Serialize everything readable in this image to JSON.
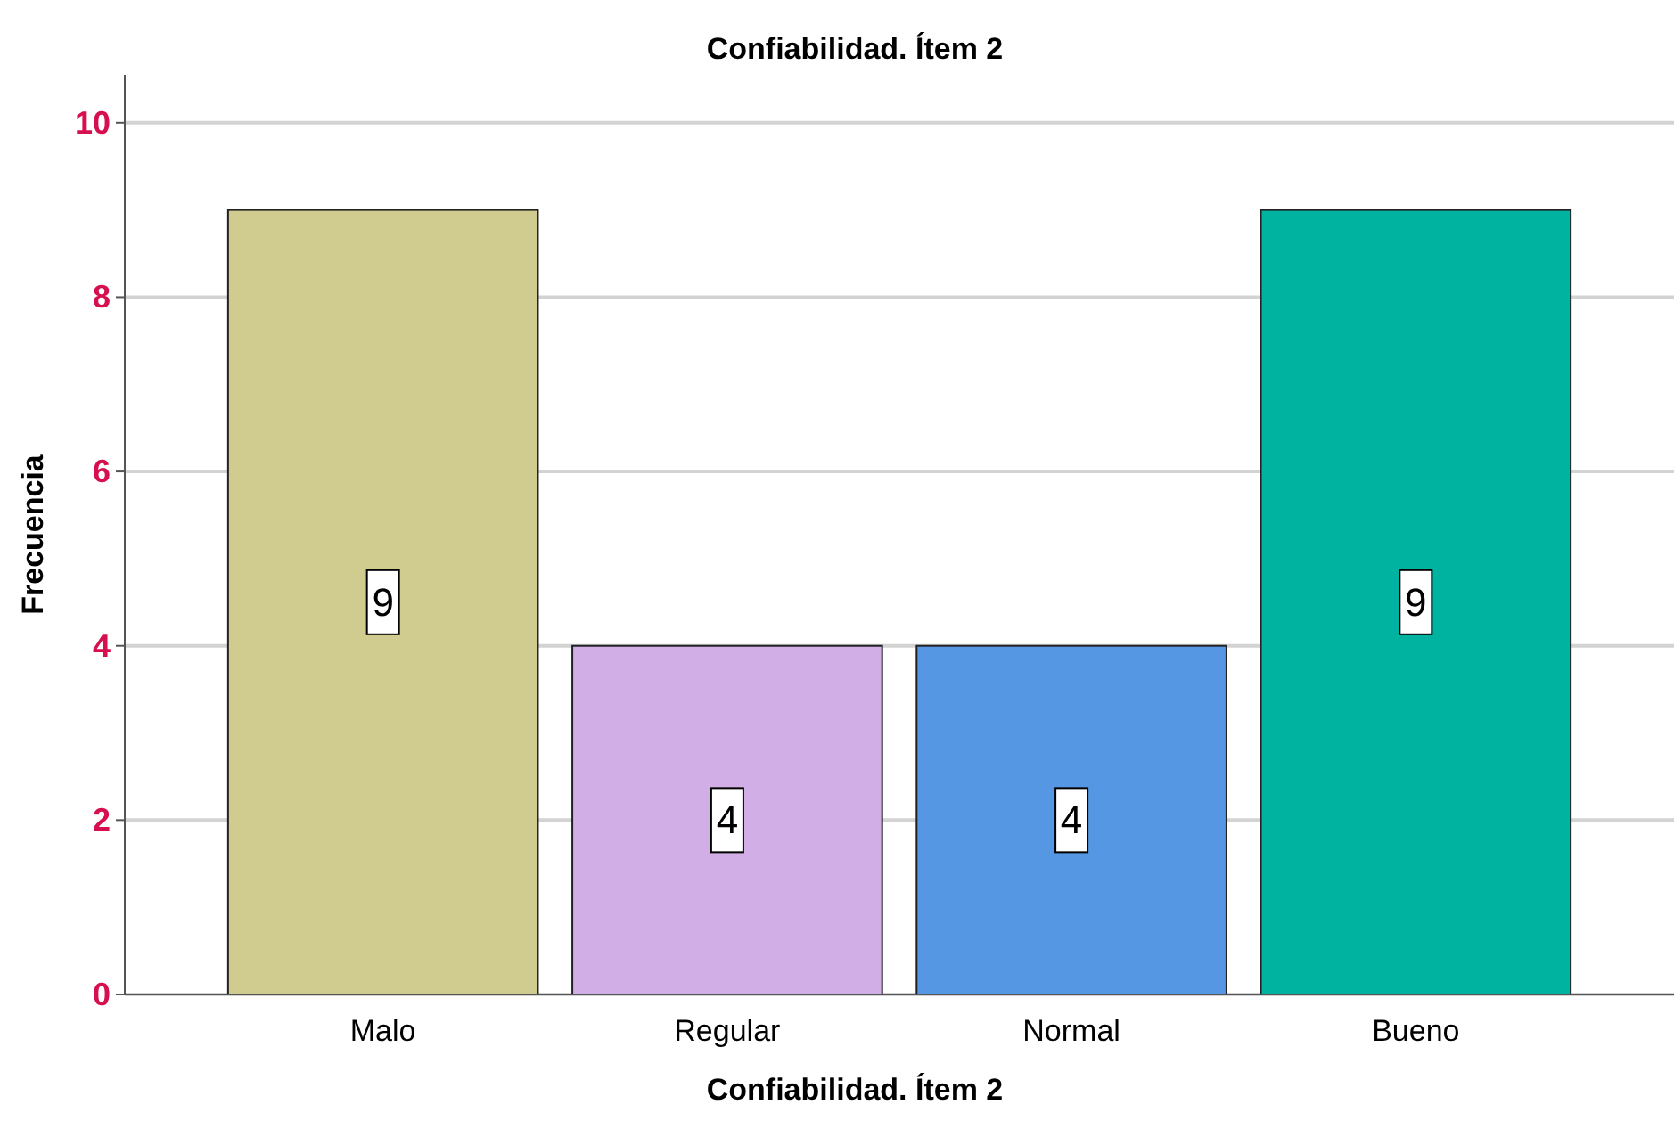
{
  "chart_data": {
    "type": "bar",
    "title": "Confiabilidad. Ítem 2",
    "xlabel": "Confiabilidad. Ítem 2",
    "ylabel": "Frecuencia",
    "categories": [
      "Malo",
      "Regular",
      "Normal",
      "Bueno"
    ],
    "values": [
      9,
      4,
      4,
      9
    ],
    "colors": [
      "#d0cb8f",
      "#d2aee6",
      "#5597e3",
      "#00b2a0"
    ],
    "ylim": [
      0,
      10.55
    ],
    "yticks": [
      0,
      2,
      4,
      6,
      8,
      10
    ],
    "grid": "y",
    "data_labels": true
  }
}
